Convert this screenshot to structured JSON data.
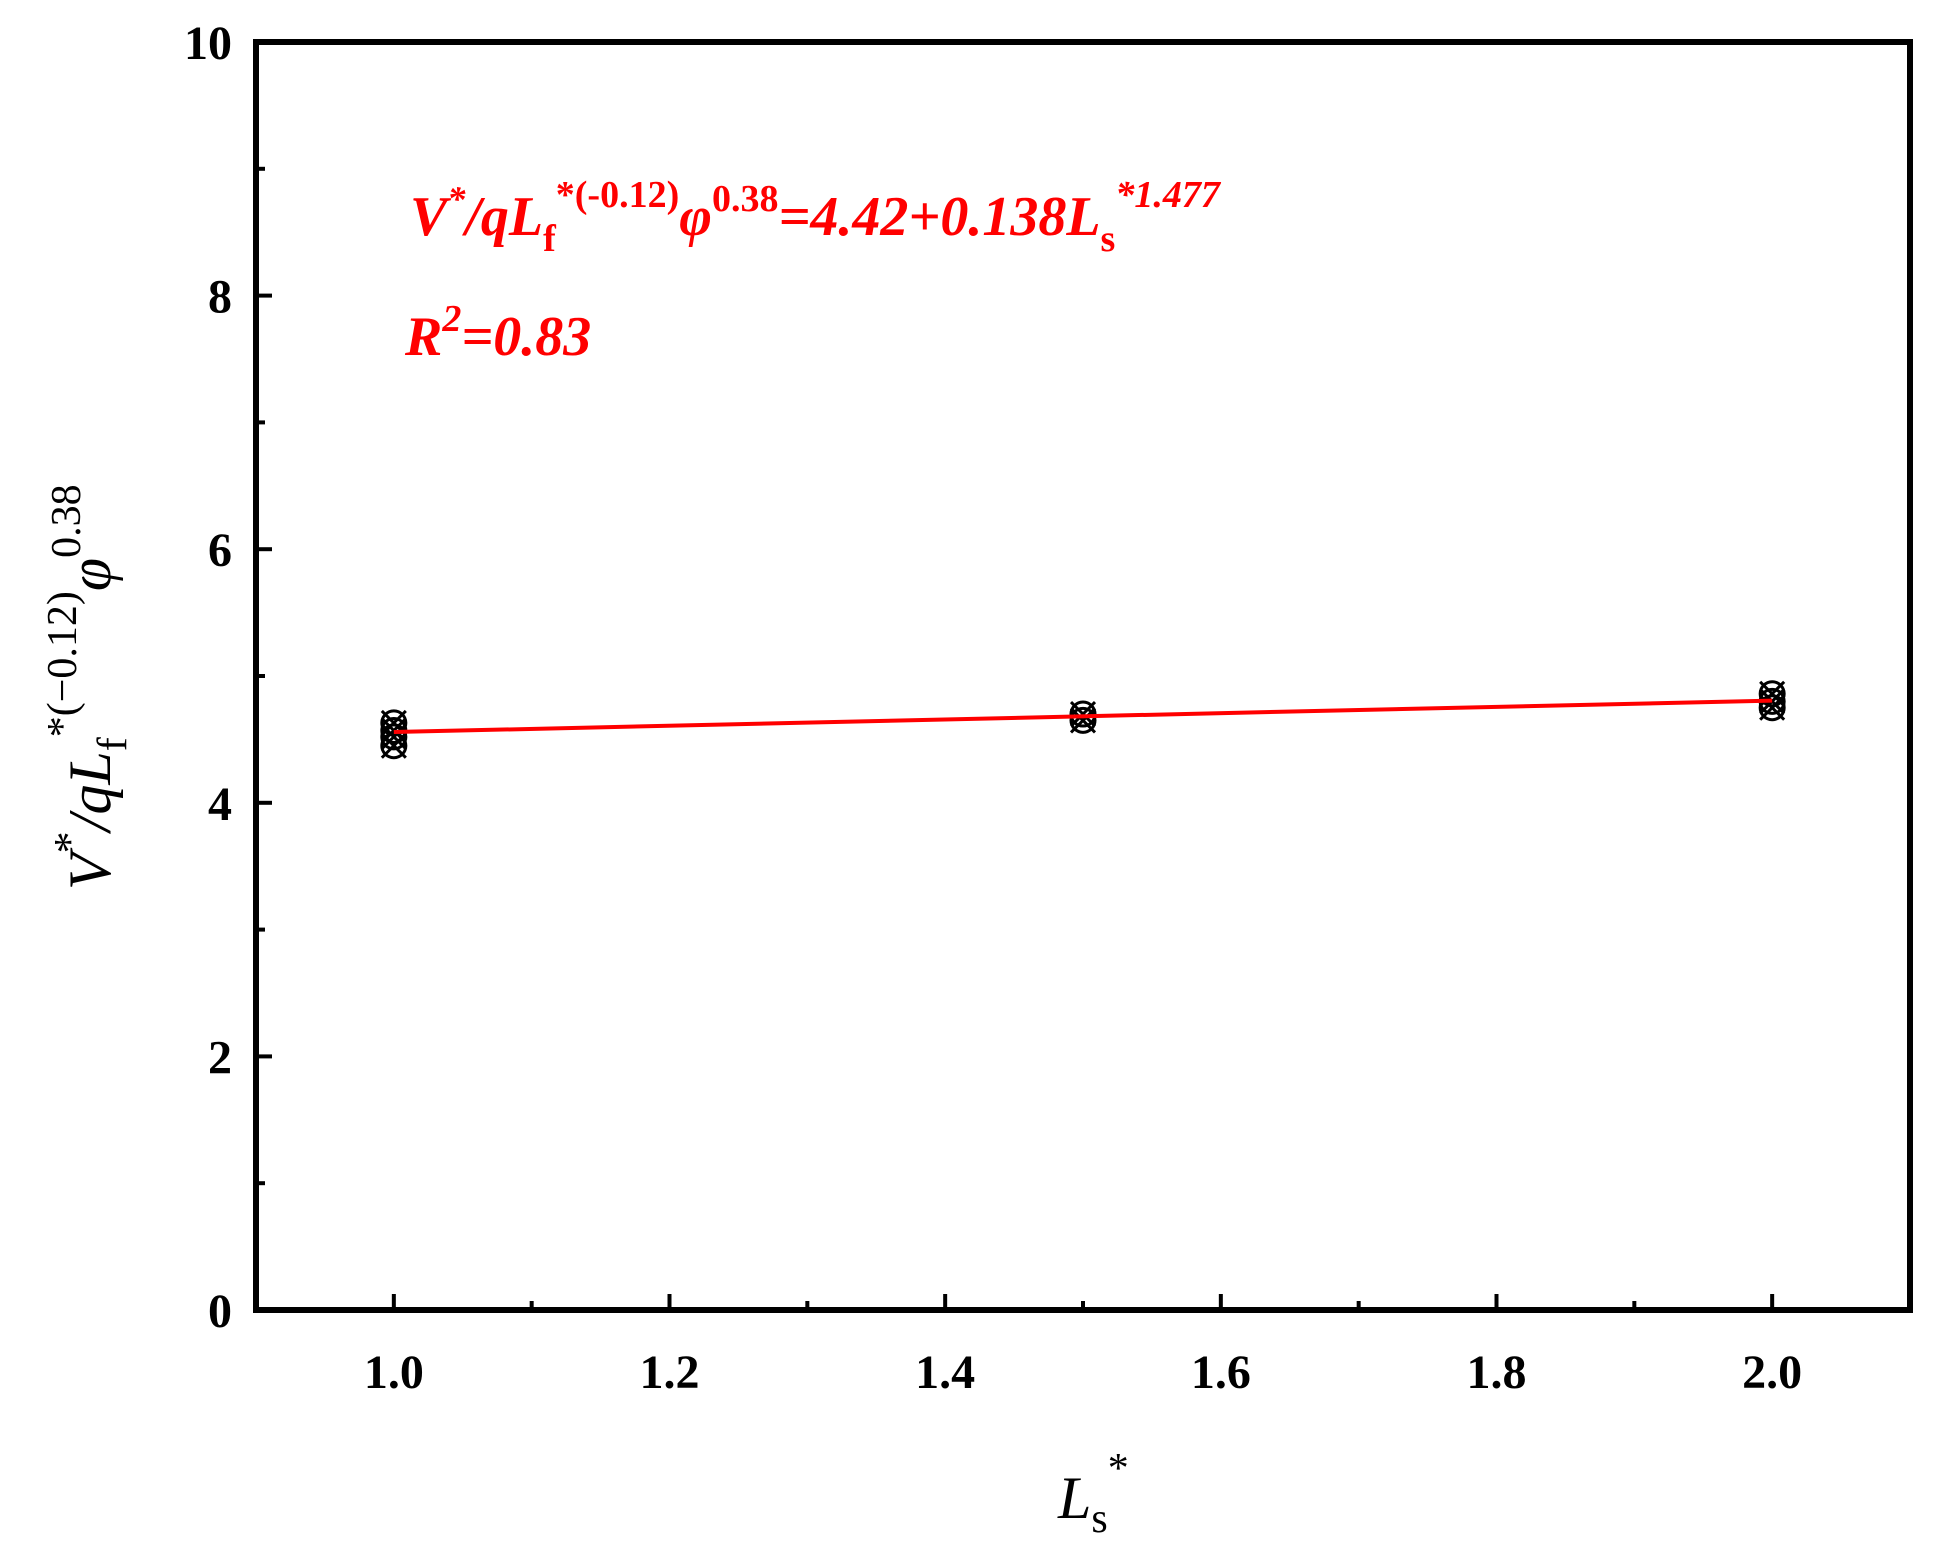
{
  "chart_data": {
    "type": "scatter",
    "xlim": [
      0.9,
      2.1
    ],
    "ylim": [
      0,
      10
    ],
    "x_ticks": [
      "1.0",
      "1.2",
      "1.4",
      "1.6",
      "1.8",
      "2.0"
    ],
    "y_ticks": [
      "0",
      "2",
      "4",
      "6",
      "8",
      "10"
    ],
    "xlabel": {
      "main": "L",
      "sub": "s",
      "sup": "*"
    },
    "ylabel": {
      "v": "V",
      "star": "*",
      "mid": "/qL",
      "sub_f": "f",
      "sup_exp": "*(−0.12)",
      "phi": "φ",
      "phi_exp": "0.38"
    },
    "annotations": {
      "equation": {
        "v": "V",
        "star": "*",
        "mid": "/qL",
        "sub_f": "f",
        "sup1": "*(-0.12)",
        "phi": "φ",
        "sup2": "0.38",
        "rhs": "=4.42+0.138L",
        "sub_s": "s",
        "sup3": "*1.477"
      },
      "r2": {
        "r": "R",
        "sup": "2",
        "rest": "=0.83"
      }
    },
    "points": [
      {
        "x": 1.0,
        "y": 4.45
      },
      {
        "x": 1.0,
        "y": 4.52
      },
      {
        "x": 1.0,
        "y": 4.57
      },
      {
        "x": 1.0,
        "y": 4.63
      },
      {
        "x": 1.5,
        "y": 4.65
      },
      {
        "x": 1.5,
        "y": 4.7
      },
      {
        "x": 2.0,
        "y": 4.75
      },
      {
        "x": 2.0,
        "y": 4.8
      },
      {
        "x": 2.0,
        "y": 4.86
      }
    ],
    "fit_line": {
      "x": [
        1.0,
        2.0
      ],
      "y": [
        4.558,
        4.806
      ]
    },
    "colors": {
      "points": "#000000",
      "fit": "#ff0000",
      "axis": "#000000"
    },
    "grid": false
  }
}
